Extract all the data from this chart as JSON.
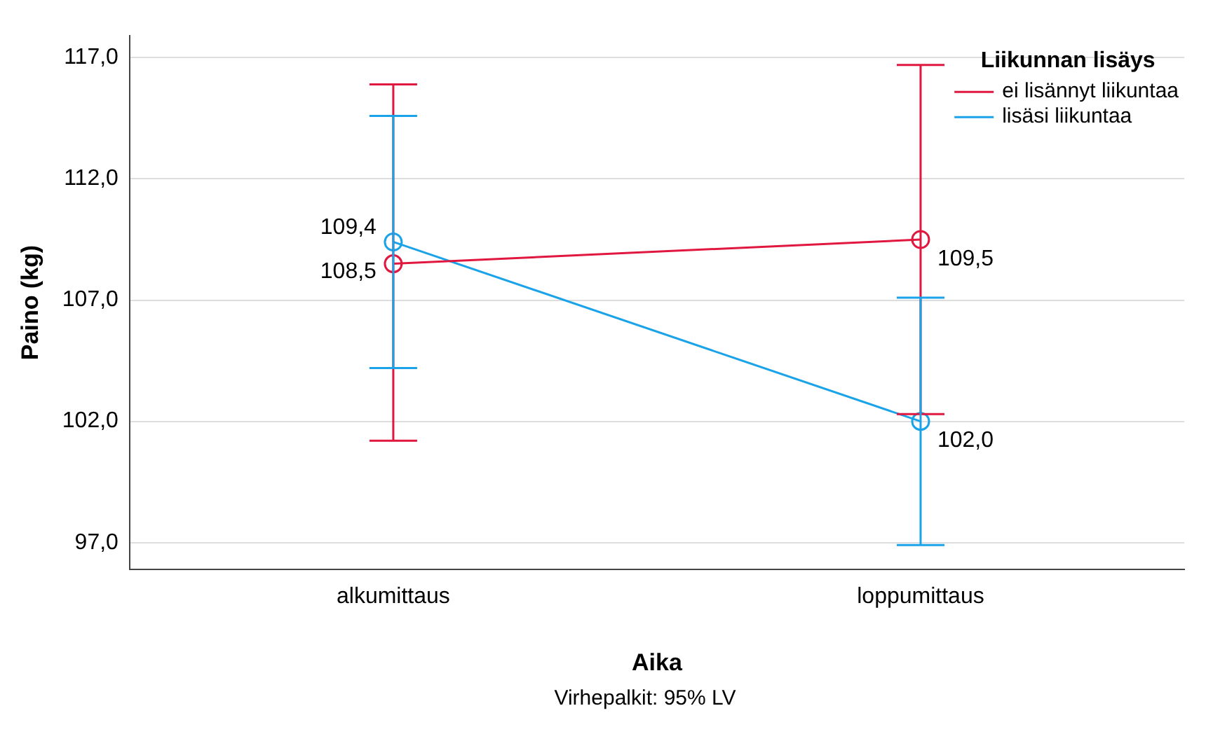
{
  "chart_data": {
    "type": "line",
    "xlabel": "Aika",
    "ylabel": "Paino (kg)",
    "legend_title": "Liikunnan lisäys",
    "annotations": [
      "Virhepalkit: 95% LV"
    ],
    "categories": [
      "alkumittaus",
      "loppumittaus"
    ],
    "series": [
      {
        "name": "ei lisännyt liikuntaa",
        "color": "#e0173f",
        "values": [
          108.5,
          109.5
        ],
        "errors": [
          [
            101.2,
            115.9
          ],
          [
            102.3,
            116.7
          ]
        ],
        "value_labels": [
          "108,5",
          "109,5"
        ]
      },
      {
        "name": "lisäsi liikuntaa",
        "color": "#1aa3e8",
        "values": [
          109.4,
          102.0
        ],
        "errors": [
          [
            104.2,
            114.6
          ],
          [
            96.9,
            107.1
          ]
        ],
        "value_labels": [
          "109,4",
          "102,0"
        ]
      }
    ],
    "ylim": [
      95.9,
      117.9
    ],
    "yticks": [
      {
        "value": 97,
        "label": "97,0"
      },
      {
        "value": 102,
        "label": "102,0"
      },
      {
        "value": 107,
        "label": "107,0"
      },
      {
        "value": 112,
        "label": "112,0"
      },
      {
        "value": 117,
        "label": "117,0"
      }
    ],
    "grid": "y",
    "legend": "top right",
    "marker": "circle",
    "line_style": "solid"
  }
}
